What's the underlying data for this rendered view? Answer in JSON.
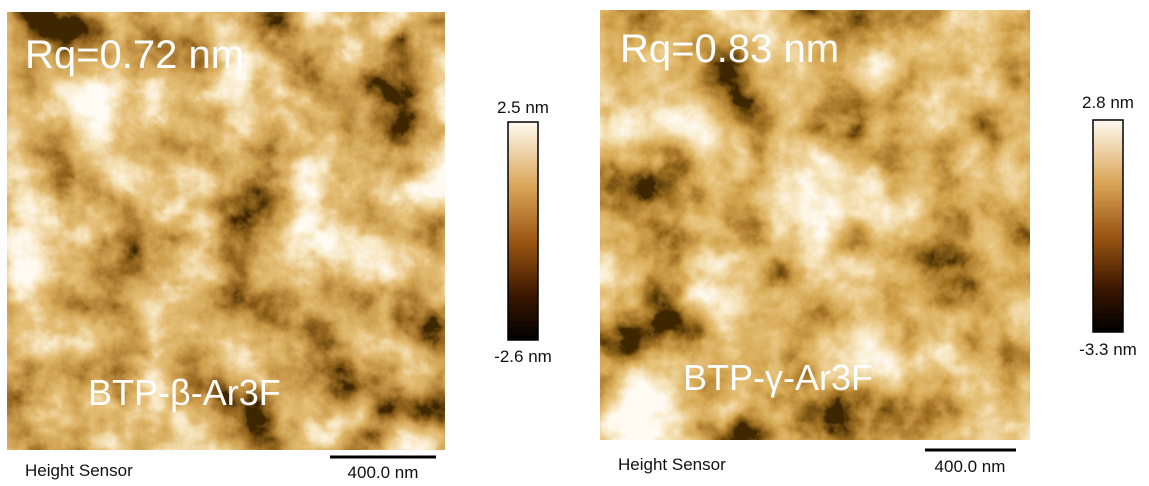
{
  "panels": [
    {
      "rq_label": "Rq=0.72 nm",
      "sample_label": "BTP-β-Ar3F",
      "colorbar_max": "2.5 nm",
      "colorbar_min": "-2.6 nm",
      "channel": "Height Sensor",
      "scale_bar": "400.0 nm"
    },
    {
      "rq_label": "Rq=0.83 nm",
      "sample_label": "BTP-γ-Ar3F",
      "colorbar_max": "2.8 nm",
      "colorbar_min": "-3.3 nm",
      "channel": "Height Sensor",
      "scale_bar": "400.0 nm"
    }
  ]
}
